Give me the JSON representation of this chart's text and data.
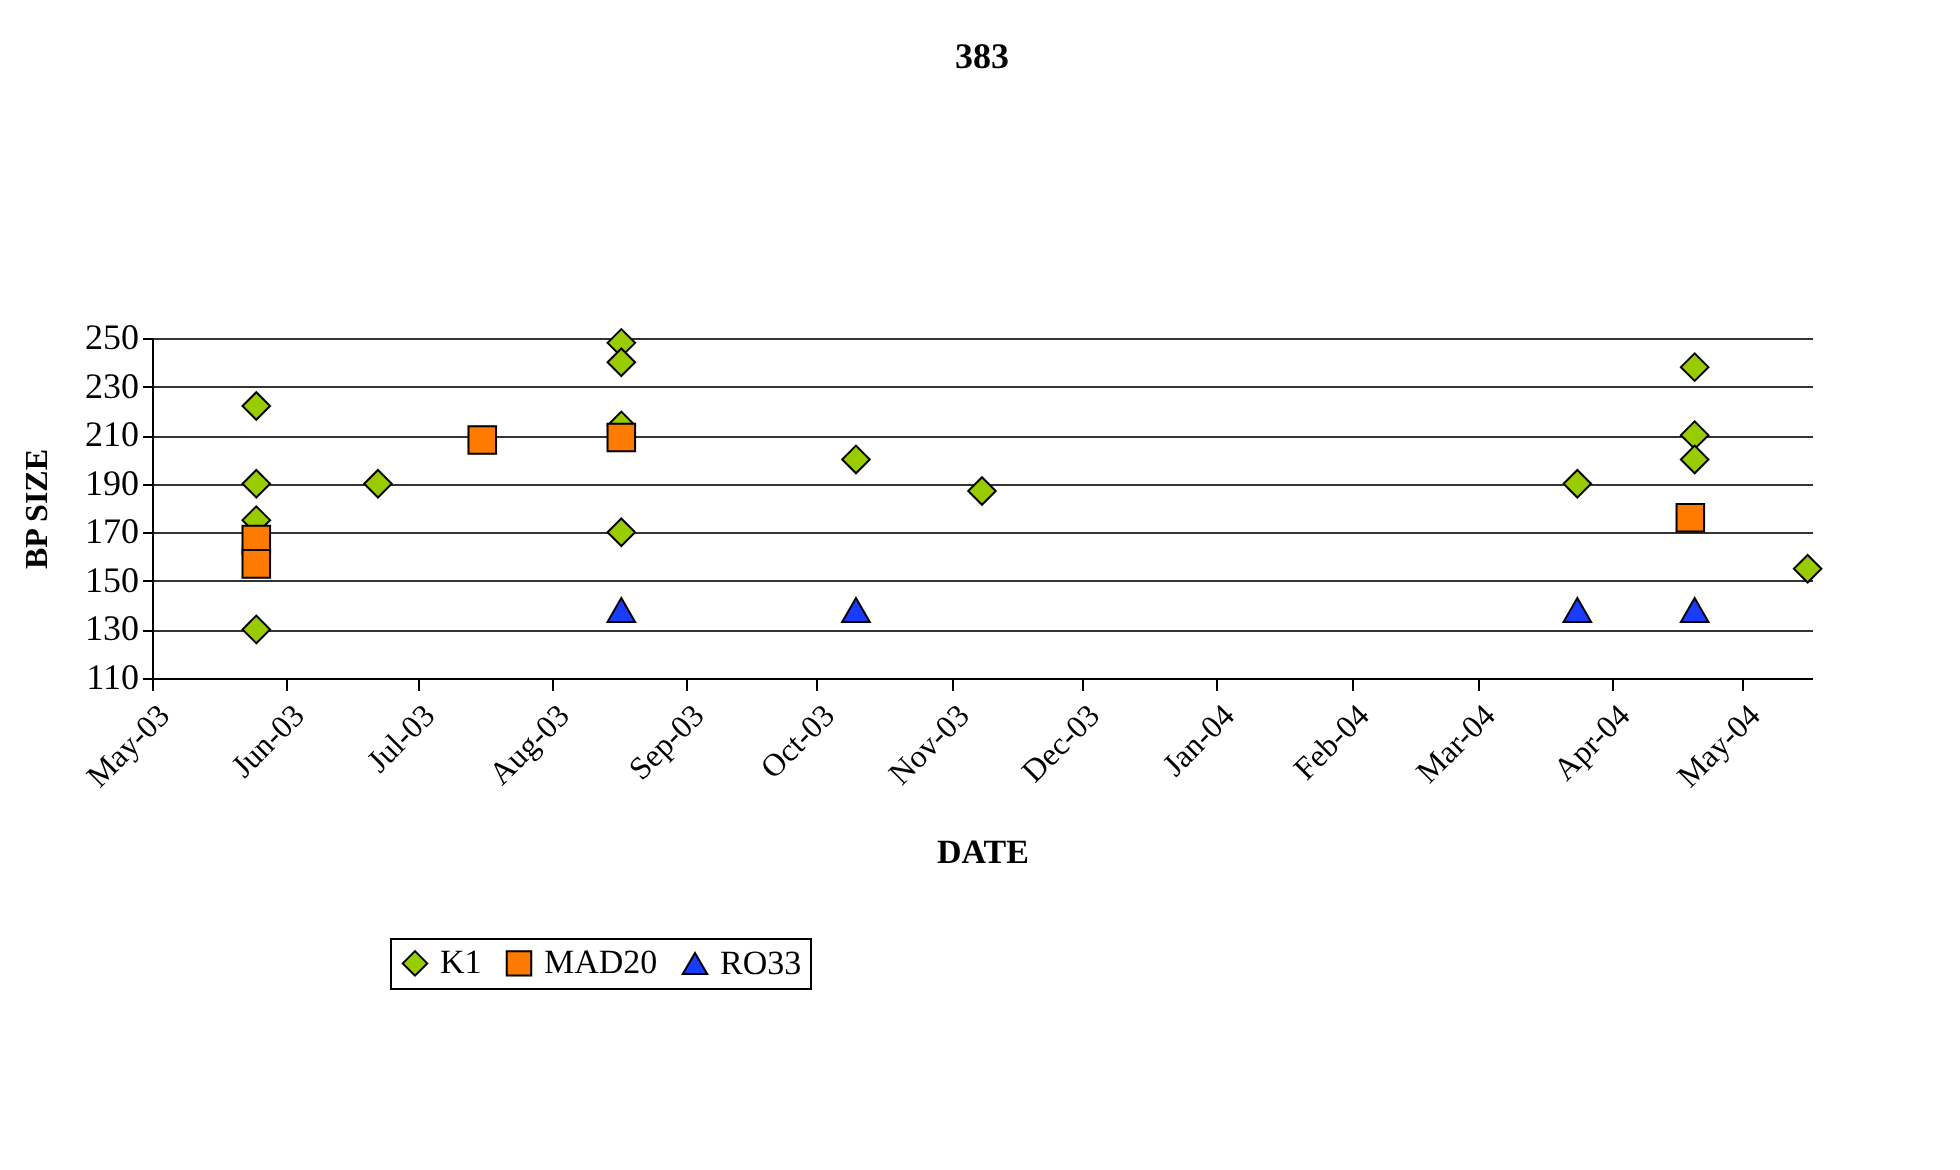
{
  "chart_data": {
    "type": "scatter",
    "title": "383",
    "xlabel": "DATE",
    "ylabel": "BP SIZE",
    "series": [
      {
        "name": "K1",
        "color": "#99cc00",
        "marker": "diamond",
        "x": [
          "2003-05-25",
          "2003-05-25",
          "2003-05-25",
          "2003-05-25",
          "2003-06-22",
          "2003-08-17",
          "2003-08-17",
          "2003-08-17",
          "2003-08-17",
          "2003-10-10",
          "2003-11-08",
          "2004-03-24",
          "2004-04-20",
          "2004-04-20",
          "2004-04-20",
          "2004-05-16"
        ],
        "values": [
          222,
          190,
          175,
          130,
          190,
          248,
          240,
          214,
          170,
          200,
          187,
          190,
          238,
          210,
          200,
          155
        ]
      },
      {
        "name": "MAD20",
        "color": "#ff7b00",
        "marker": "square",
        "x": [
          "2003-05-25",
          "2003-05-25",
          "2003-07-16",
          "2003-08-17",
          "2004-04-19"
        ],
        "values": [
          167,
          157,
          208,
          209,
          176
        ]
      },
      {
        "name": "RO33",
        "color": "#1a3cff",
        "marker": "triangle",
        "x": [
          "2003-08-17",
          "2003-10-10",
          "2004-03-24",
          "2004-04-20"
        ],
        "values": [
          138,
          138,
          138,
          138
        ]
      }
    ],
    "xlim": [
      "2003-05-01",
      "2004-05-17"
    ],
    "xticks": [
      {
        "value": "2003-05-01",
        "label": "May-03"
      },
      {
        "value": "2003-06-01",
        "label": "Jun-03"
      },
      {
        "value": "2003-07-01",
        "label": "Jul-03"
      },
      {
        "value": "2003-08-01",
        "label": "Aug-03"
      },
      {
        "value": "2003-09-01",
        "label": "Sep-03"
      },
      {
        "value": "2003-10-01",
        "label": "Oct-03"
      },
      {
        "value": "2003-11-01",
        "label": "Nov-03"
      },
      {
        "value": "2003-12-01",
        "label": "Dec-03"
      },
      {
        "value": "2004-01-01",
        "label": "Jan-04"
      },
      {
        "value": "2004-02-01",
        "label": "Feb-04"
      },
      {
        "value": "2004-03-01",
        "label": "Mar-04"
      },
      {
        "value": "2004-04-01",
        "label": "Apr-04"
      },
      {
        "value": "2004-05-01",
        "label": "May-04"
      }
    ],
    "ylim": [
      110,
      250
    ],
    "yticks": [
      110,
      130,
      150,
      170,
      190,
      210,
      230,
      250
    ],
    "grid": "y",
    "legend": "bottom"
  }
}
